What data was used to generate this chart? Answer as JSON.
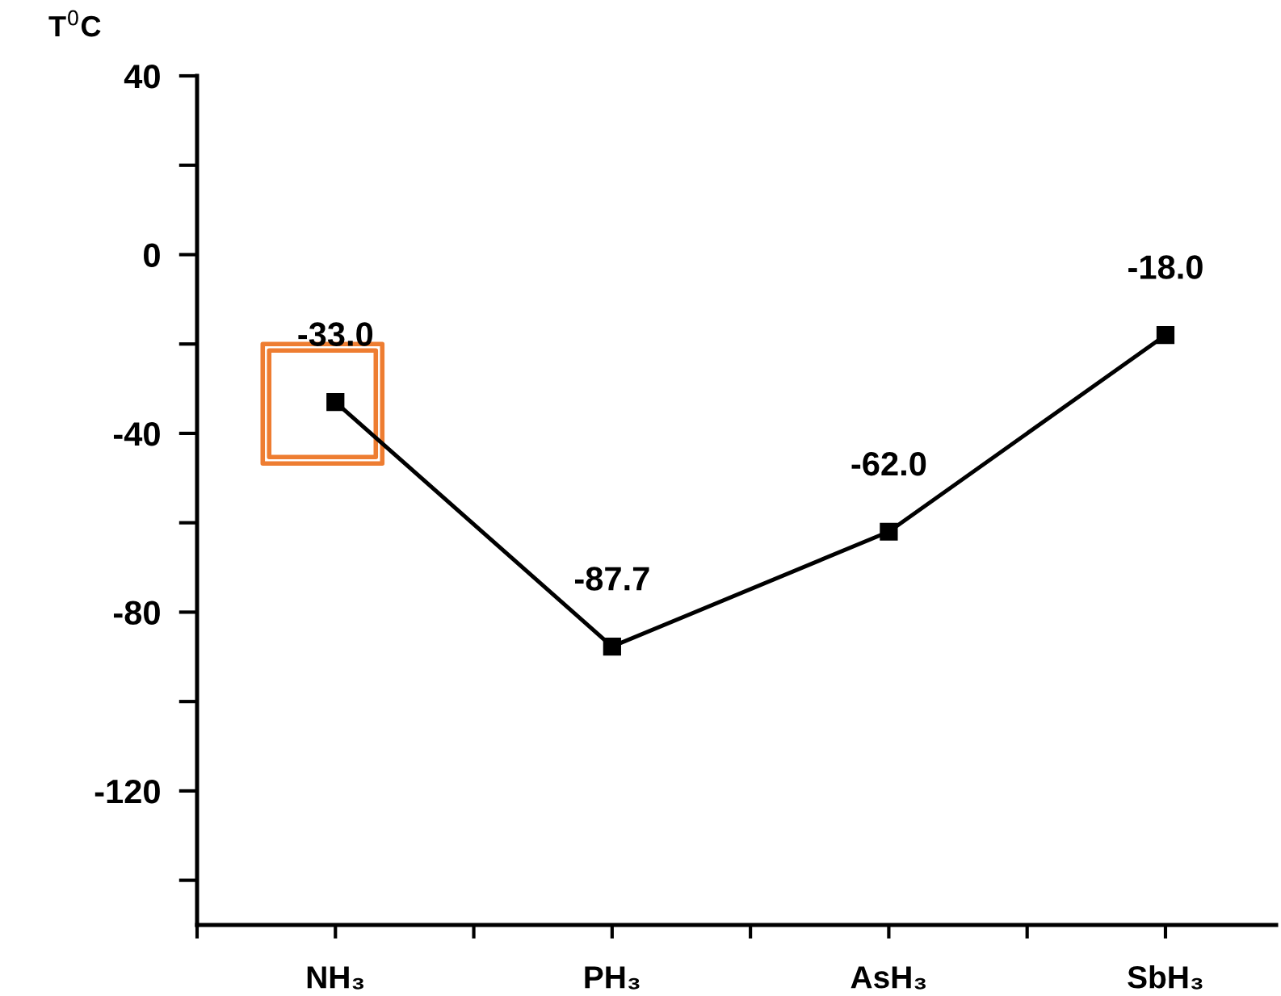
{
  "chart_data": {
    "type": "line",
    "ylabel": "T$^{0}$C",
    "categories": [
      "NH₃",
      "PH₃",
      "AsH₃",
      "SbH₃"
    ],
    "series": [
      {
        "color": "#000000",
        "values": [
          -33.0,
          -87.7,
          -62.0,
          -18.0
        ],
        "value_labels": [
          "-33.0",
          "-87.7",
          "-62.0",
          "-18.0"
        ]
      }
    ],
    "ylim": [
      -150,
      40
    ],
    "yticks": [
      40,
      {
        "value": 20,
        "label": null
      },
      0,
      {
        "value": -20,
        "label": null
      },
      -40,
      {
        "value": -60,
        "label": null
      },
      -80,
      {
        "value": -100,
        "label": null
      },
      -120,
      {
        "value": -140,
        "label": null
      }
    ],
    "marker": "square",
    "line_style": "solid",
    "grid": false,
    "legend": false
  }
}
